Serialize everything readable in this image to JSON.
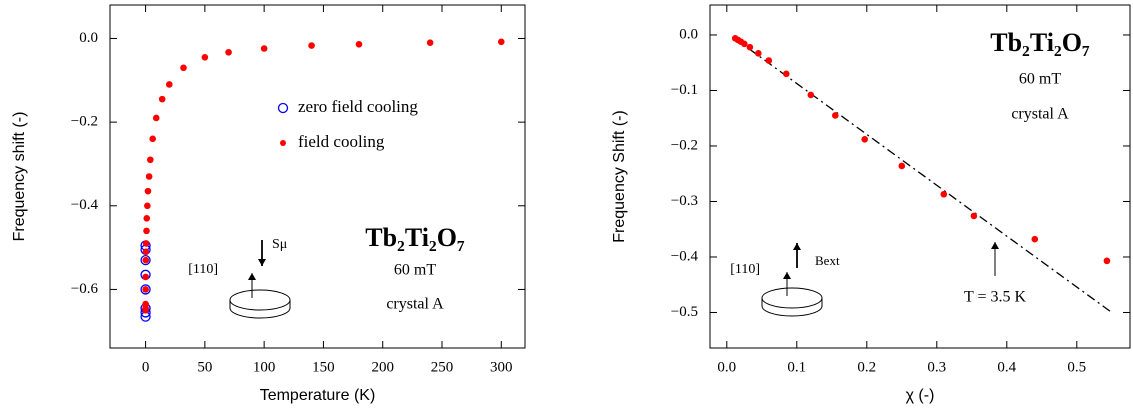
{
  "chart_data": [
    {
      "type": "scatter",
      "x_label": "Temperature (K)",
      "y_label": "Frequency  shift (-)",
      "xlim": [
        -30,
        320
      ],
      "ylim": [
        -0.74,
        0.08
      ],
      "xticks": [
        0,
        50,
        100,
        150,
        200,
        250,
        300
      ],
      "yticks": [
        {
          "value": 0,
          "label": "0.0"
        },
        {
          "value": -0.2,
          "label": "−0.2"
        },
        {
          "value": -0.4,
          "label": "−0.4"
        },
        {
          "value": -0.6,
          "label": "−0.6"
        }
      ],
      "legend": "center right",
      "series": [
        {
          "name": "zero field cooling",
          "color": "#0000ff",
          "marker": "open",
          "x": [
            0,
            0,
            0,
            0,
            0,
            0,
            0,
            0
          ],
          "y": [
            -0.495,
            -0.505,
            -0.53,
            -0.565,
            -0.6,
            -0.645,
            -0.655,
            -0.665
          ]
        },
        {
          "name": "field cooling",
          "color": "#ff0000",
          "marker": "filled",
          "x": [
            300,
            240,
            180,
            140,
            100,
            70,
            50,
            32,
            20,
            14,
            9,
            6,
            4,
            3,
            2,
            1.5,
            1,
            0.8,
            0.5,
            0.3,
            0.2,
            0.1,
            0.05,
            0.03,
            0.02,
            0
          ],
          "y": [
            -0.008,
            -0.01,
            -0.014,
            -0.017,
            -0.024,
            -0.033,
            -0.045,
            -0.07,
            -0.11,
            -0.145,
            -0.19,
            -0.24,
            -0.29,
            -0.33,
            -0.365,
            -0.4,
            -0.43,
            -0.46,
            -0.49,
            -0.51,
            -0.53,
            -0.57,
            -0.6,
            -0.635,
            -0.645,
            -0.65
          ]
        }
      ],
      "annotations": {
        "formula": "Tb₂Ti₂O₇",
        "field": "60 mT",
        "sample": "crystal A",
        "direction": "[110]",
        "vector": "Sμ"
      }
    },
    {
      "type": "scatter",
      "x_label": "χ (-)",
      "y_label": "Frequency Shift (-)",
      "xlim": [
        -0.024,
        0.576
      ],
      "ylim": [
        -0.564,
        0.054
      ],
      "xticks": [
        {
          "value": 0,
          "label": "0.0"
        },
        0.1,
        0.2,
        0.3,
        0.4,
        0.5
      ],
      "yticks": [
        {
          "value": 0,
          "label": "0.0"
        },
        {
          "value": -0.1,
          "label": "−0.1"
        },
        {
          "value": -0.2,
          "label": "−0.2"
        },
        {
          "value": -0.3,
          "label": "−0.3"
        },
        {
          "value": -0.4,
          "label": "−0.4"
        },
        {
          "value": -0.5,
          "label": "−0.5"
        }
      ],
      "series": [
        {
          "color": "#ff0000",
          "marker": "filled",
          "x": [
            0.012,
            0.016,
            0.02,
            0.025,
            0.033,
            0.045,
            0.06,
            0.085,
            0.12,
            0.155,
            0.197,
            0.25,
            0.31,
            0.353,
            0.44,
            0.543
          ],
          "y": [
            -0.006,
            -0.009,
            -0.012,
            -0.016,
            -0.022,
            -0.033,
            -0.046,
            -0.07,
            -0.108,
            -0.145,
            -0.188,
            -0.236,
            -0.287,
            -0.326,
            -0.368,
            -0.407
          ]
        }
      ],
      "fit_line": {
        "x": [
          0.01,
          0.55
        ],
        "y": [
          -0.005,
          -0.5
        ],
        "style": "dashdot"
      },
      "annotations": {
        "formula": "Tb₂Ti₂O₇",
        "field": "60 mT",
        "sample": "crystal A",
        "direction": "[110]",
        "vector": "Bext",
        "temperature": "T = 3.5 K"
      }
    }
  ]
}
